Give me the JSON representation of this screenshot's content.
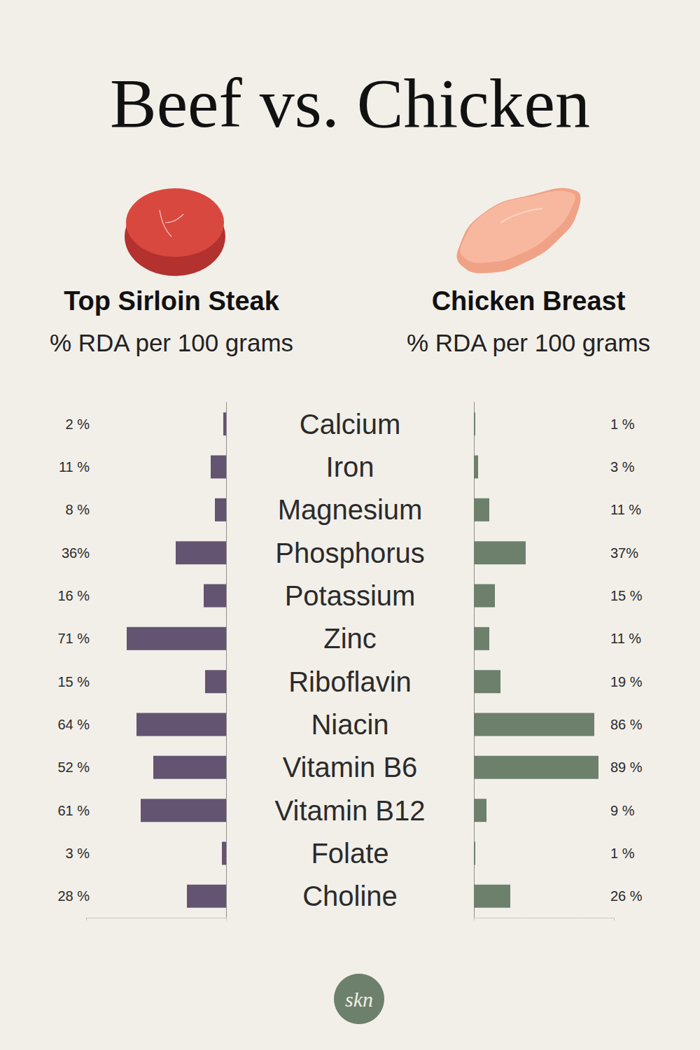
{
  "chart_data": {
    "type": "bar",
    "orientation": "horizontal",
    "title": "Beef vs. Chicken",
    "subtitle": "% RDA per 100 grams",
    "logo": "skn",
    "categories": [
      "Calcium",
      "Iron",
      "Magnesium",
      "Phosphorus",
      "Potassium",
      "Zinc",
      "Riboflavin",
      "Niacin",
      "Vitamin B6",
      "Vitamin B12",
      "Folate",
      "Choline"
    ],
    "series": [
      {
        "name": "Top Sirloin Steak",
        "color": "#635471",
        "values": [
          2,
          11,
          8,
          36,
          16,
          71,
          15,
          64,
          52,
          61,
          3,
          28
        ],
        "value_labels": [
          "2 %",
          "11 %",
          "8 %",
          "36%",
          "16 %",
          "71 %",
          "15 %",
          "64 %",
          "52 %",
          "61 %",
          "3 %",
          "28 %"
        ]
      },
      {
        "name": "Chicken Breast",
        "color": "#6d806c",
        "values": [
          1,
          3,
          11,
          37,
          15,
          11,
          19,
          86,
          89,
          9,
          1,
          26
        ],
        "value_labels": [
          "1 %",
          "3 %",
          "11 %",
          "37%",
          "15 %",
          "11 %",
          "19 %",
          "86 %",
          "89 %",
          "9 %",
          "1 %",
          "26 %"
        ]
      }
    ],
    "xlim": [
      0,
      100
    ],
    "xticks": [
      0,
      100
    ],
    "grid": false,
    "data_labels": true,
    "tick_labels": "y"
  }
}
